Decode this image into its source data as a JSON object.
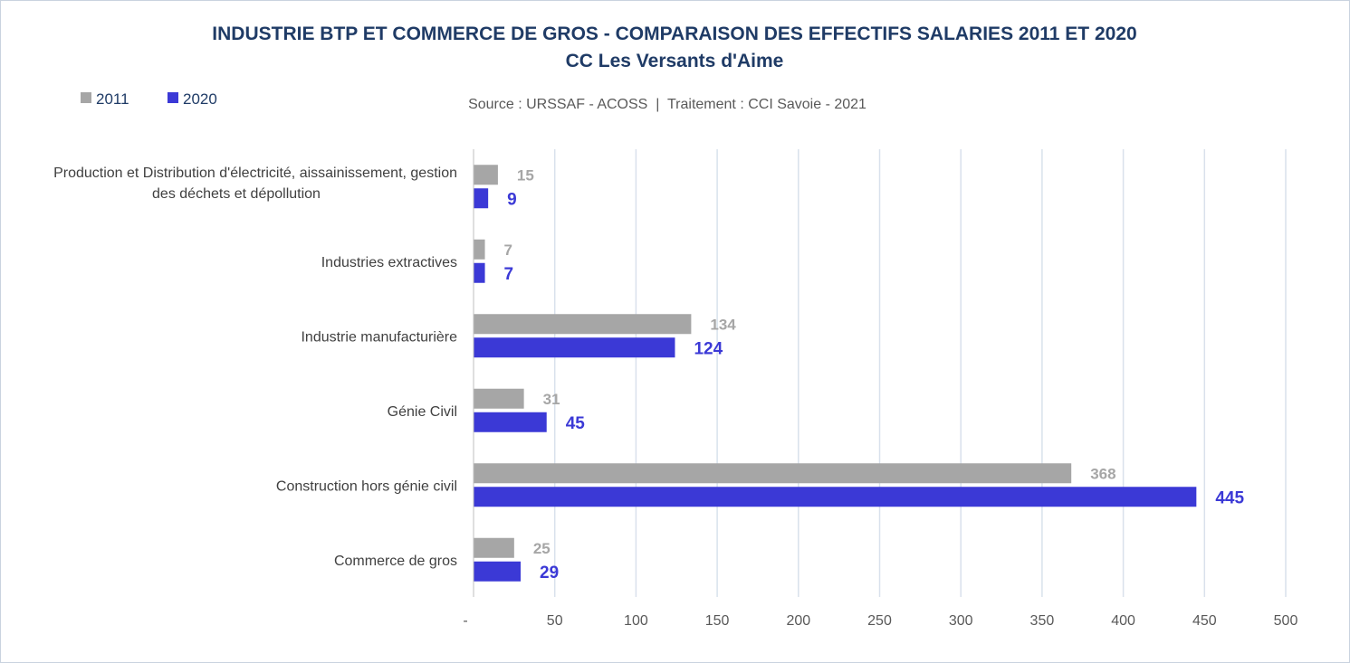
{
  "chart_data": {
    "type": "bar",
    "orientation": "horizontal",
    "title": "INDUSTRIE BTP ET COMMERCE DE GROS - COMPARAISON DES EFFECTIFS SALARIES 2011 ET 2020",
    "subtitle": "CC Les Versants d'Aime",
    "source": "Source : URSSAF - ACOSS  |  Traitement : CCI Savoie - 2021",
    "categories": [
      [
        "Production et Distribution d'électricité, aissainissement, gestion",
        "des déchets et dépollution"
      ],
      [
        "Industries extractives"
      ],
      [
        "Industrie manufacturière"
      ],
      [
        "Génie Civil"
      ],
      [
        "Construction hors génie civil"
      ],
      [
        "Commerce de gros"
      ]
    ],
    "series": [
      {
        "name": "2011",
        "color": "#a6a6a6",
        "values": [
          15,
          7,
          134,
          31,
          368,
          25
        ]
      },
      {
        "name": "2020",
        "color": "#3b39d6",
        "values": [
          9,
          7,
          124,
          45,
          445,
          29
        ]
      }
    ],
    "xlim": [
      0,
      500
    ],
    "xticks": [
      0,
      50,
      100,
      150,
      200,
      250,
      300,
      350,
      400,
      450,
      500
    ],
    "xtick_labels": [
      "-",
      "50",
      "100",
      "150",
      "200",
      "250",
      "300",
      "350",
      "400",
      "450",
      "500"
    ],
    "grid": true,
    "legend_position": "top-left",
    "colors": {
      "title": "#1f3b66",
      "grid": "#d9e1ec",
      "axis": "#bfbfbf"
    }
  }
}
